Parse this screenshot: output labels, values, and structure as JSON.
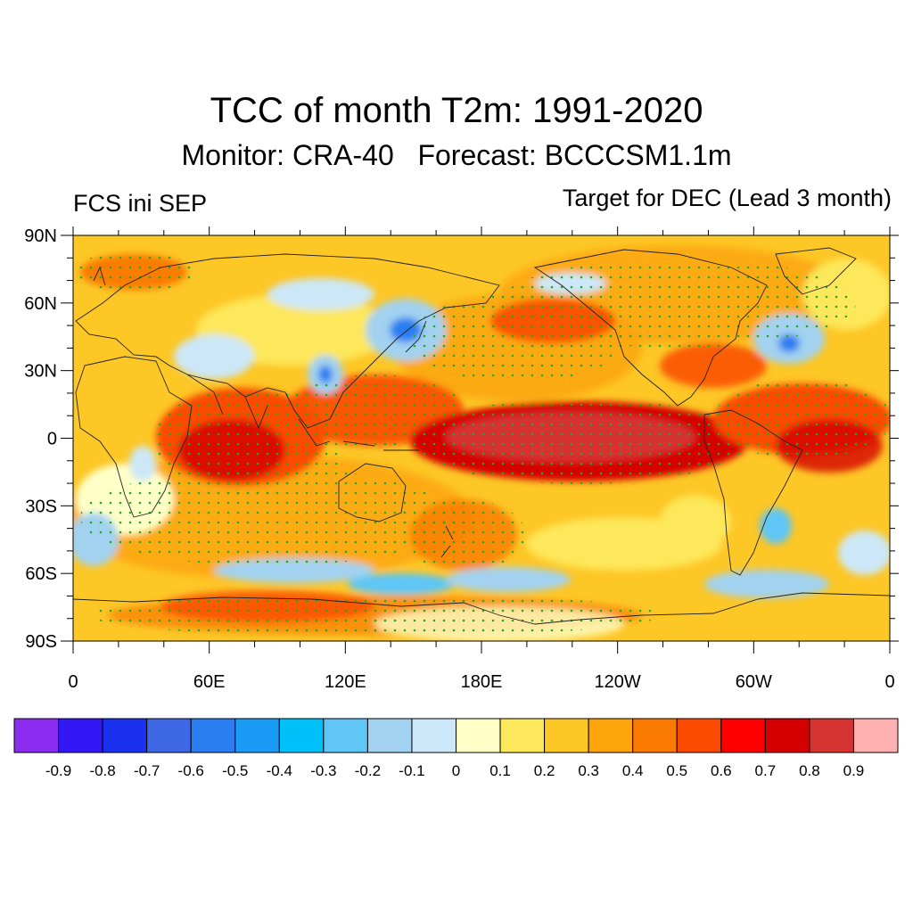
{
  "header": {
    "title": "TCC of month T2m: 1991-2020",
    "subtitle": "Monitor: CRA-40   Forecast: BCCCSM1.1m",
    "left_label": "FCS ini SEP",
    "right_label": "Target for DEC (Lead 3 month)"
  },
  "map": {
    "lon_range": [
      0,
      360
    ],
    "lat_range": [
      -90,
      90
    ],
    "lat_labels": [
      "90N",
      "60N",
      "30N",
      "0",
      "30S",
      "60S",
      "90S"
    ],
    "lon_labels": [
      "0",
      "60E",
      "120E",
      "180E",
      "120W",
      "60W",
      "0"
    ]
  },
  "colorbar": {
    "colors": [
      "#8b2cf0",
      "#3318f5",
      "#1a32f0",
      "#3e68e6",
      "#2a7ef2",
      "#1a9bf5",
      "#00c0fa",
      "#5fc6f6",
      "#a2d2f0",
      "#cce7f7",
      "#ffffc8",
      "#fde75a",
      "#fdc726",
      "#fca40a",
      "#fa7b00",
      "#fa4b00",
      "#ff0000",
      "#d50000",
      "#d63333",
      "#ffb0b0"
    ],
    "labels": [
      "-0.9",
      "-0.8",
      "-0.7",
      "-0.6",
      "-0.5",
      "-0.4",
      "-0.3",
      "-0.2",
      "-0.1",
      "0",
      "0.1",
      "0.2",
      "0.3",
      "0.4",
      "0.5",
      "0.6",
      "0.7",
      "0.8",
      "0.9"
    ]
  }
}
